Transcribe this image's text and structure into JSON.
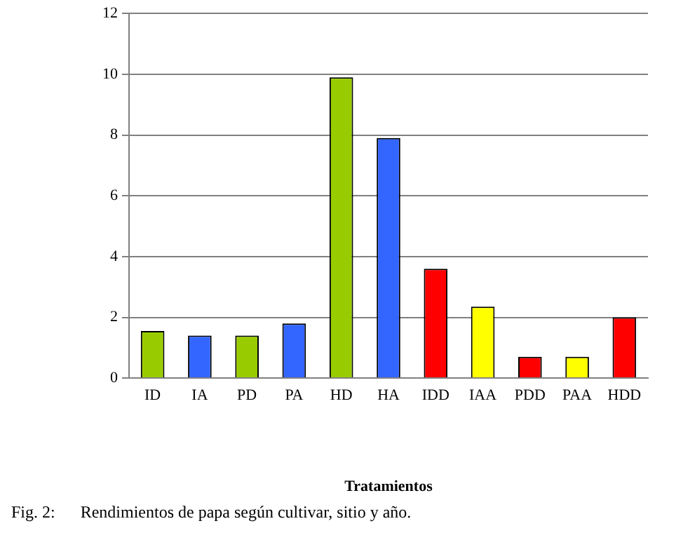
{
  "chart_data": {
    "type": "bar",
    "categories": [
      "ID",
      "IA",
      "PD",
      "PA",
      "HD",
      "HA",
      "IDD",
      "IAA",
      "PDD",
      "PAA",
      "HDD"
    ],
    "values": [
      1.55,
      1.4,
      1.4,
      1.8,
      9.9,
      7.9,
      3.6,
      2.35,
      0.7,
      0.7,
      2.0
    ],
    "colors": [
      "#99cc00",
      "#3366ff",
      "#99cc00",
      "#3366ff",
      "#99cc00",
      "#3366ff",
      "#ff0000",
      "#ffff00",
      "#ff0000",
      "#ffff00",
      "#ff0000"
    ],
    "xlabel": "Tratamientos",
    "ylim": [
      0,
      12
    ],
    "yticks": [
      0,
      2,
      4,
      6,
      8,
      10,
      12
    ],
    "grid": "y",
    "legend": false,
    "annotations": [
      "Fig. 2:      Rendimientos de papa según cultivar, sitio y año."
    ]
  }
}
